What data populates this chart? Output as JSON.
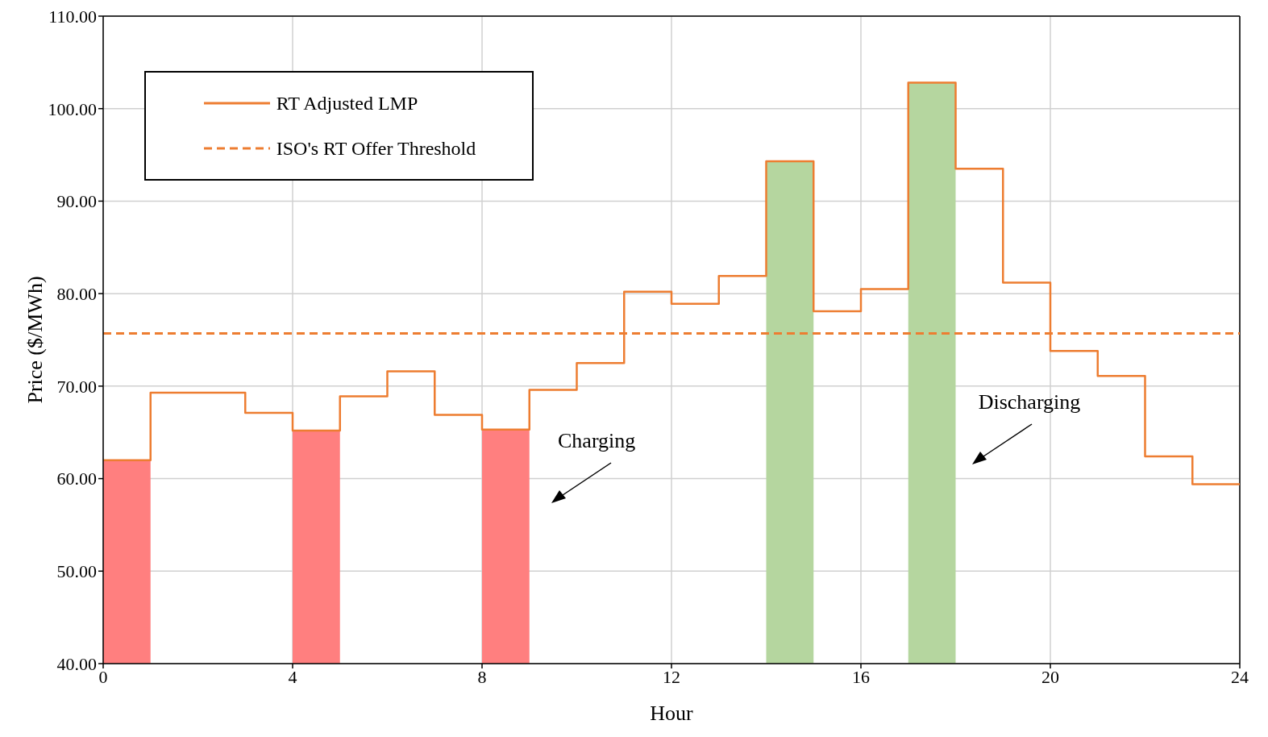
{
  "chart_data": {
    "type": "step",
    "xlabel": "Hour",
    "ylabel": "Price ($/MWh)",
    "xlim": [
      0,
      24
    ],
    "xticks": [
      0,
      4,
      8,
      12,
      16,
      20,
      24
    ],
    "ylim": [
      40,
      110
    ],
    "yticks": [
      {
        "value": 40,
        "label": "40.00"
      },
      {
        "value": 50,
        "label": "50.00"
      },
      {
        "value": 60,
        "label": "60.00"
      },
      {
        "value": 70,
        "label": "70.00"
      },
      {
        "value": 80,
        "label": "80.00"
      },
      {
        "value": 90,
        "label": "90.00"
      },
      {
        "value": 100,
        "label": "100.00"
      },
      {
        "value": 110,
        "label": "110.00"
      }
    ],
    "grid": true,
    "legend": "top left",
    "line_style": "solid",
    "marker": "none",
    "series": [
      {
        "type": "area",
        "color": "#ff7f7f",
        "x": [
          0,
          1
        ],
        "values": [
          62.0,
          62.0
        ]
      },
      {
        "type": "area",
        "color": "#ff7f7f",
        "x": [
          4,
          5
        ],
        "values": [
          65.2,
          65.2
        ]
      },
      {
        "type": "area",
        "color": "#ff7f7f",
        "x": [
          8,
          9
        ],
        "values": [
          65.3,
          65.3
        ]
      },
      {
        "type": "area",
        "color": "#b5d69f",
        "x": [
          14,
          15
        ],
        "values": [
          94.3,
          94.3
        ]
      },
      {
        "type": "area",
        "color": "#b5d69f",
        "x": [
          17,
          18
        ],
        "values": [
          102.8,
          102.8
        ]
      },
      {
        "name": "RT Adjusted LMP",
        "color": "#ed7d31",
        "x": [
          0,
          1,
          2,
          3,
          4,
          5,
          6,
          7,
          8,
          9,
          10,
          11,
          12,
          13,
          14,
          15,
          16,
          17,
          18,
          19,
          20,
          21,
          22,
          23,
          24
        ],
        "values": [
          62.0,
          69.3,
          69.3,
          67.1,
          65.2,
          68.9,
          71.6,
          66.9,
          65.3,
          69.6,
          72.5,
          80.2,
          78.9,
          81.9,
          94.3,
          78.1,
          80.5,
          102.8,
          93.5,
          81.2,
          73.8,
          71.1,
          62.4,
          59.4,
          59.4
        ]
      }
    ],
    "ref_lines": [
      {
        "axis": "y",
        "value": 75.7,
        "label": "ISO's RT Offer Threshold",
        "color": "#ed7d31",
        "line_style": "dashed"
      }
    ],
    "annotations": [
      "Charging",
      "Discharging"
    ]
  }
}
